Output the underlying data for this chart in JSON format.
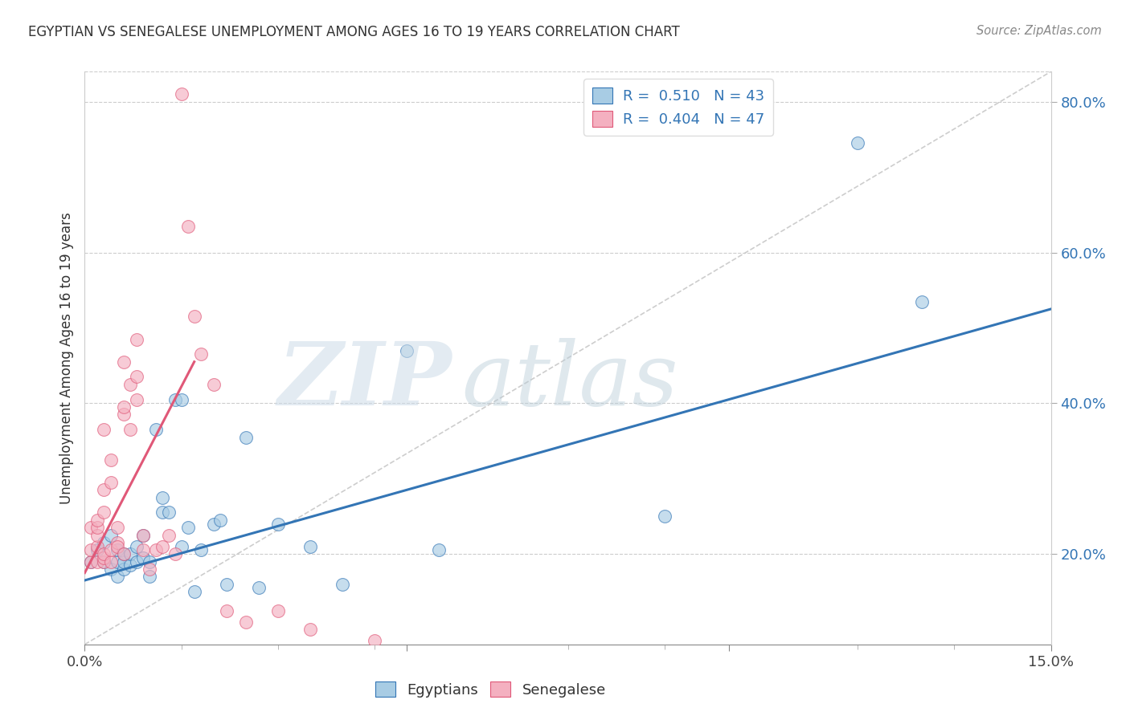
{
  "title": "EGYPTIAN VS SENEGALESE UNEMPLOYMENT AMONG AGES 16 TO 19 YEARS CORRELATION CHART",
  "source": "Source: ZipAtlas.com",
  "ylabel": "Unemployment Among Ages 16 to 19 years",
  "legend_blue_R": "0.510",
  "legend_blue_N": "43",
  "legend_pink_R": "0.404",
  "legend_pink_N": "47",
  "legend_blue_label": "Egyptians",
  "legend_pink_label": "Senegalese",
  "blue_color": "#a8cce4",
  "pink_color": "#f4b0c0",
  "line_blue_color": "#3375b5",
  "line_pink_color": "#e05878",
  "background_color": "#ffffff",
  "grid_color": "#cccccc",
  "xlim": [
    0.0,
    0.15
  ],
  "ylim": [
    0.08,
    0.84
  ],
  "blue_scatter_x": [
    0.001,
    0.002,
    0.003,
    0.003,
    0.004,
    0.004,
    0.005,
    0.005,
    0.005,
    0.006,
    0.006,
    0.006,
    0.007,
    0.007,
    0.008,
    0.008,
    0.009,
    0.009,
    0.01,
    0.01,
    0.011,
    0.012,
    0.012,
    0.013,
    0.014,
    0.015,
    0.015,
    0.016,
    0.017,
    0.018,
    0.02,
    0.021,
    0.022,
    0.025,
    0.027,
    0.03,
    0.035,
    0.04,
    0.05,
    0.055,
    0.09,
    0.12,
    0.13
  ],
  "blue_scatter_y": [
    0.19,
    0.205,
    0.19,
    0.215,
    0.18,
    0.225,
    0.17,
    0.19,
    0.205,
    0.18,
    0.19,
    0.2,
    0.185,
    0.2,
    0.19,
    0.21,
    0.225,
    0.195,
    0.17,
    0.19,
    0.365,
    0.255,
    0.275,
    0.255,
    0.405,
    0.405,
    0.21,
    0.235,
    0.15,
    0.205,
    0.24,
    0.245,
    0.16,
    0.355,
    0.155,
    0.24,
    0.21,
    0.16,
    0.47,
    0.205,
    0.25,
    0.745,
    0.535
  ],
  "pink_scatter_x": [
    0.001,
    0.001,
    0.001,
    0.002,
    0.002,
    0.002,
    0.002,
    0.002,
    0.003,
    0.003,
    0.003,
    0.003,
    0.003,
    0.003,
    0.004,
    0.004,
    0.004,
    0.004,
    0.005,
    0.005,
    0.005,
    0.006,
    0.006,
    0.006,
    0.006,
    0.007,
    0.007,
    0.008,
    0.008,
    0.008,
    0.009,
    0.009,
    0.01,
    0.011,
    0.012,
    0.013,
    0.014,
    0.015,
    0.016,
    0.017,
    0.018,
    0.02,
    0.022,
    0.025,
    0.03,
    0.035,
    0.045
  ],
  "pink_scatter_y": [
    0.19,
    0.205,
    0.235,
    0.19,
    0.21,
    0.225,
    0.235,
    0.245,
    0.19,
    0.195,
    0.2,
    0.255,
    0.285,
    0.365,
    0.19,
    0.205,
    0.295,
    0.325,
    0.215,
    0.21,
    0.235,
    0.2,
    0.385,
    0.455,
    0.395,
    0.365,
    0.425,
    0.405,
    0.435,
    0.485,
    0.205,
    0.225,
    0.18,
    0.205,
    0.21,
    0.225,
    0.2,
    0.81,
    0.635,
    0.515,
    0.465,
    0.425,
    0.125,
    0.11,
    0.125,
    0.1,
    0.085
  ],
  "blue_line_x": [
    0.0,
    0.15
  ],
  "blue_line_y": [
    0.165,
    0.525
  ],
  "pink_line_x": [
    0.0,
    0.017
  ],
  "pink_line_y": [
    0.175,
    0.455
  ],
  "diag_line_x": [
    0.0,
    0.15
  ],
  "diag_line_y": [
    0.08,
    0.84
  ]
}
